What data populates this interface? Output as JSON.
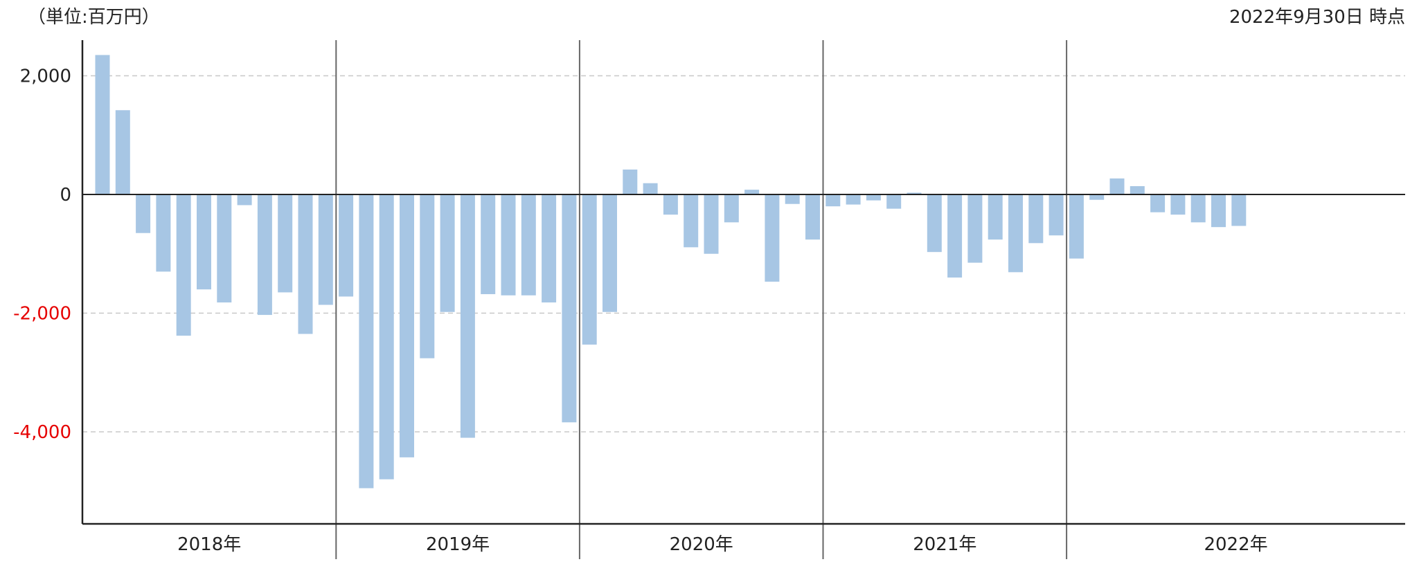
{
  "unit_label": "（単位:百万円）",
  "as_of_label": "2022年9月30日 時点",
  "colors": {
    "bar": "#a7c6e4",
    "axis": "#222222",
    "grid": "#c8c8c8",
    "separator": "#666666",
    "positive_tick": "#222222",
    "negative_tick": "#e60000"
  },
  "chart_data": {
    "type": "bar",
    "title": "",
    "xlabel": "",
    "ylabel": "",
    "ylim": [
      -5500,
      2500
    ],
    "y_ticks": [
      2000,
      0,
      -2000,
      -4000
    ],
    "y_tick_labels": [
      "2,000",
      "0",
      "-2,000",
      "-4,000"
    ],
    "grid": "horizontal dashed",
    "groups": [
      {
        "label": "2018年",
        "values": [
          2350,
          1420,
          -650,
          -1300,
          -2380,
          -1600,
          -1820,
          -180,
          -2030,
          -1650,
          -2350,
          -1860
        ]
      },
      {
        "label": "2019年",
        "values": [
          -1720,
          -4950,
          -4800,
          -4430,
          -2760,
          -1980,
          -4100,
          -1680,
          -1700,
          -1700,
          -1820,
          -3840
        ]
      },
      {
        "label": "2020年",
        "values": [
          -2530,
          -1980,
          420,
          190,
          -340,
          -890,
          -1000,
          -470,
          80,
          -1470,
          -160,
          -760
        ]
      },
      {
        "label": "2021年",
        "values": [
          -200,
          -170,
          -100,
          -240,
          30,
          -970,
          -1400,
          -1150,
          -760,
          -1310,
          -820,
          -690
        ]
      },
      {
        "label": "2022年",
        "values": [
          -1080,
          -90,
          270,
          140,
          -300,
          -340,
          -470,
          -550,
          -530
        ]
      }
    ]
  }
}
